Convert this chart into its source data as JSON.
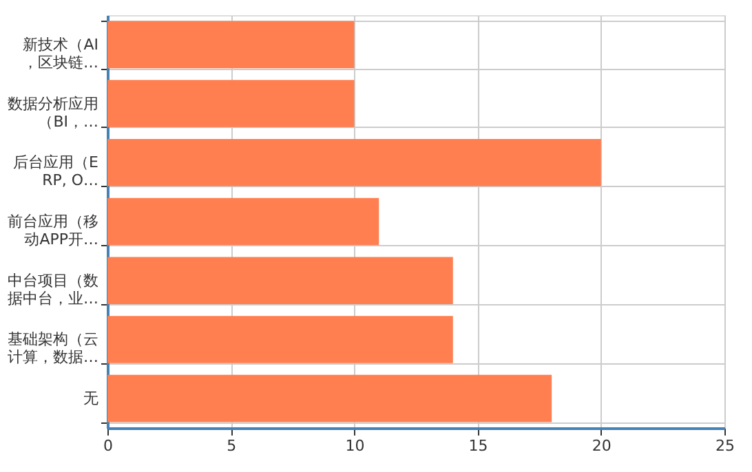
{
  "chart_data": {
    "type": "bar",
    "orientation": "horizontal",
    "categories": [
      "新技术（AI，区块链…",
      "数据分析应用（BI，…",
      "后台应用（ERP, O…",
      "前台应用（移动APP开…",
      "中台项目（数据中台，业…",
      "基础架构（云计算，数据…",
      "无"
    ],
    "values": [
      10,
      10,
      20,
      11,
      14,
      14,
      18
    ],
    "color": "#ff7f50",
    "xlim": [
      0,
      25
    ],
    "xticks": [
      0,
      5,
      10,
      15,
      20,
      25
    ],
    "grid": true
  }
}
